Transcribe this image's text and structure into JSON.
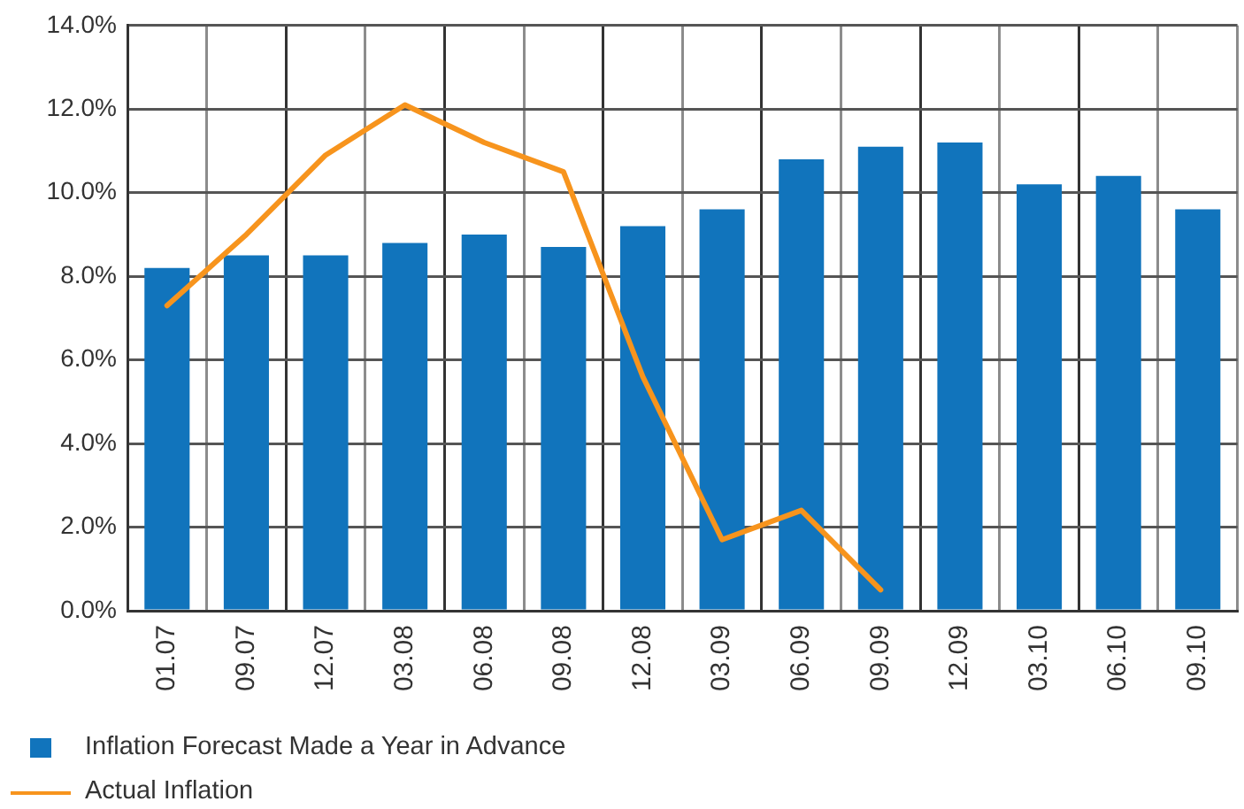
{
  "chart_data": {
    "type": "bar",
    "categories": [
      "01.07",
      "09.07",
      "12.07",
      "03.08",
      "06.08",
      "09.08",
      "12.08",
      "03.09",
      "06.09",
      "09.09",
      "12.09",
      "03.10",
      "06.10",
      "09.10"
    ],
    "series": [
      {
        "name": "Inflation Forecast Made a Year in Advance",
        "color": "#1174bc",
        "values": [
          8.2,
          8.5,
          8.5,
          8.8,
          9.0,
          8.7,
          9.2,
          9.6,
          10.8,
          11.1,
          11.2,
          10.2,
          10.4,
          9.6
        ]
      },
      {
        "name": "Actual Inflation",
        "type": "line",
        "color": "#f7941d",
        "values": [
          7.3,
          9.0,
          10.9,
          12.1,
          11.2,
          10.5,
          5.6,
          1.7,
          2.4,
          0.5,
          null,
          null,
          null,
          null
        ]
      }
    ],
    "ylim": [
      0,
      14
    ],
    "yticks": [
      {
        "value": 0,
        "label": "0.0%"
      },
      {
        "value": 2,
        "label": "2.0%"
      },
      {
        "value": 4,
        "label": "4.0%"
      },
      {
        "value": 6,
        "label": "6.0%"
      },
      {
        "value": 8,
        "label": "8.0%"
      },
      {
        "value": 10,
        "label": "10.0%"
      },
      {
        "value": 12,
        "label": "12.0%"
      },
      {
        "value": 14,
        "label": "14.0%"
      }
    ],
    "grid": true,
    "legend": "bottom left",
    "marker": "none"
  }
}
